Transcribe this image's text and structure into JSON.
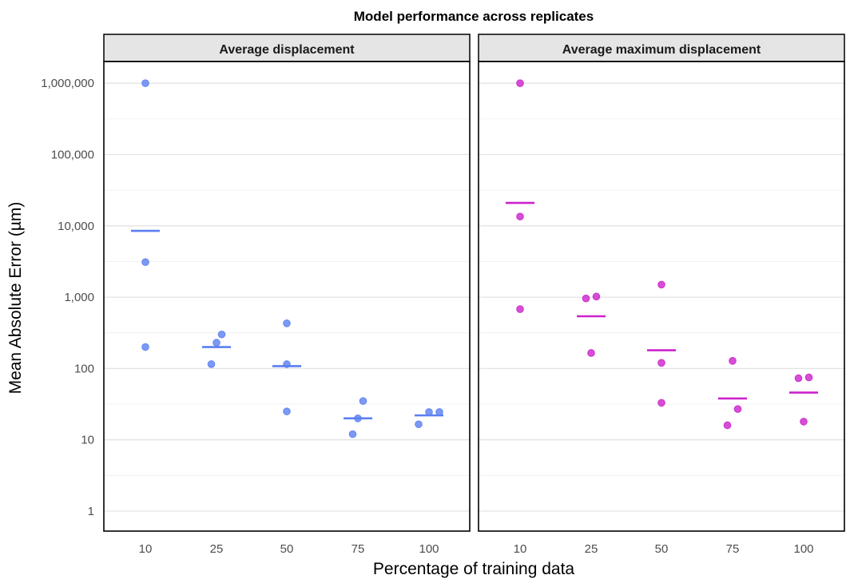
{
  "chart_data": {
    "type": "scatter",
    "title": "Model performance across replicates",
    "xlabel": "Percentage of training data",
    "ylabel": "Mean Absolute Error (µm)",
    "y_scale": "log10",
    "ylim": [
      0.5,
      2500000
    ],
    "y_ticks": [
      1,
      10,
      100,
      1000,
      10000,
      100000,
      1000000
    ],
    "y_tick_labels": [
      "1",
      "10",
      "100",
      "1,000",
      "10,000",
      "100,000",
      "1,000,000"
    ],
    "categories": [
      "10",
      "25",
      "50",
      "75",
      "100"
    ],
    "grid": true,
    "legend": "none",
    "panels": [
      {
        "name": "Average displacement",
        "color": "#5b7ff0",
        "points": [
          {
            "x": "10",
            "y": 1000000
          },
          {
            "x": "10",
            "y": 3100
          },
          {
            "x": "10",
            "y": 200
          },
          {
            "x": "25",
            "y": 115
          },
          {
            "x": "25",
            "y": 230
          },
          {
            "x": "25",
            "y": 300
          },
          {
            "x": "50",
            "y": 25
          },
          {
            "x": "50",
            "y": 115
          },
          {
            "x": "50",
            "y": 430
          },
          {
            "x": "75",
            "y": 12
          },
          {
            "x": "75",
            "y": 20
          },
          {
            "x": "75",
            "y": 35
          },
          {
            "x": "100",
            "y": 16.5
          },
          {
            "x": "100",
            "y": 24.5
          },
          {
            "x": "100",
            "y": 24.5
          }
        ],
        "means": [
          8500,
          200,
          108,
          20,
          22
        ]
      },
      {
        "name": "Average maximum displacement",
        "color": "#cc22cc",
        "points": [
          {
            "x": "10",
            "y": 1000000
          },
          {
            "x": "10",
            "y": 13500
          },
          {
            "x": "10",
            "y": 680
          },
          {
            "x": "25",
            "y": 165
          },
          {
            "x": "25",
            "y": 960
          },
          {
            "x": "25",
            "y": 1020
          },
          {
            "x": "50",
            "y": 33
          },
          {
            "x": "50",
            "y": 120
          },
          {
            "x": "50",
            "y": 1500
          },
          {
            "x": "75",
            "y": 16
          },
          {
            "x": "75",
            "y": 27
          },
          {
            "x": "75",
            "y": 128
          },
          {
            "x": "100",
            "y": 18
          },
          {
            "x": "100",
            "y": 73
          },
          {
            "x": "100",
            "y": 75
          }
        ],
        "means": [
          21000,
          540,
          180,
          38,
          46
        ]
      }
    ]
  }
}
